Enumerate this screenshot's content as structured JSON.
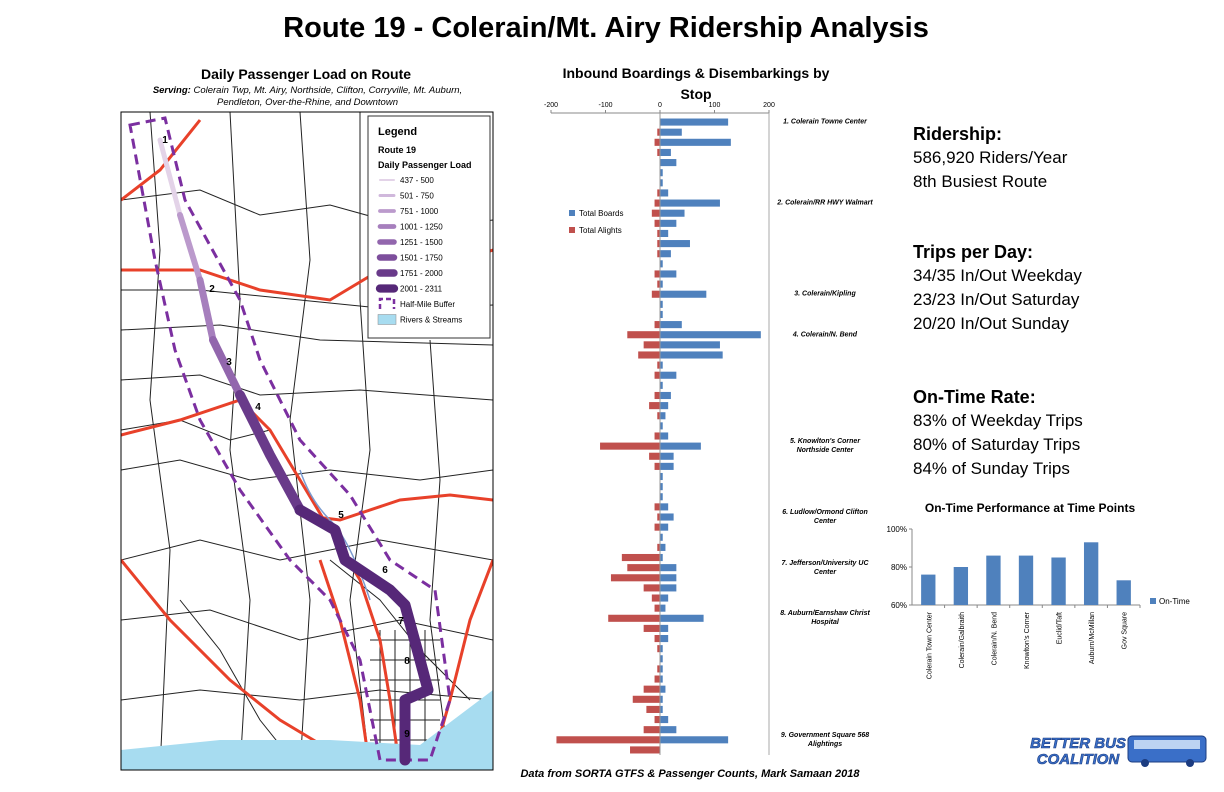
{
  "title": "Route 19 - Colerain/Mt. Airy Ridership Analysis",
  "map": {
    "title": "Daily Passenger Load on Route",
    "serving_label": "Serving:",
    "serving": "Colerain Twp, Mt. Airy, Northside, Clifton, Corryville, Mt. Auburn, Pendleton, Over-the-Rhine, and Downtown",
    "legend_title": "Legend",
    "route_label": "Route 19",
    "load_label": "Daily Passenger Load",
    "legend": [
      {
        "label": "437 - 500",
        "color": "#e3d3e8",
        "symbol": "line"
      },
      {
        "label": "501 - 750",
        "color": "#d0b8dc",
        "symbol": "line"
      },
      {
        "label": "751 - 1000",
        "color": "#bb9acc",
        "symbol": "line"
      },
      {
        "label": "1001 - 1250",
        "color": "#a67fbd",
        "symbol": "line"
      },
      {
        "label": "1251 - 1500",
        "color": "#9266ad",
        "symbol": "line"
      },
      {
        "label": "1501 - 1750",
        "color": "#7d4e9c",
        "symbol": "line"
      },
      {
        "label": "1751 - 2000",
        "color": "#693a8a",
        "symbol": "line"
      },
      {
        "label": "2001 - 2311",
        "color": "#562878",
        "symbol": "line"
      },
      {
        "label": "Half-Mile Buffer",
        "color": "#7b2fa0",
        "symbol": "dashed"
      },
      {
        "label": "Rivers & Streams",
        "color": "#a7dcf0",
        "symbol": "area"
      }
    ],
    "stop_labels": [
      "1",
      "2",
      "3",
      "4",
      "5",
      "6",
      "7",
      "8",
      "9"
    ]
  },
  "stats": [
    {
      "heading": "Ridership:",
      "lines": [
        "586,920 Riders/Year",
        "8th Busiest Route"
      ]
    },
    {
      "heading": "Trips per Day:",
      "lines": [
        "34/35 In/Out Weekday",
        "23/23 In/Out Saturday",
        "20/20 In/Out Sunday"
      ]
    },
    {
      "heading": "On-Time Rate:",
      "lines": [
        "83% of Weekday Trips",
        "80% of Saturday Trips",
        "84% of Sunday Trips"
      ]
    }
  ],
  "chart_data": [
    {
      "type": "bar",
      "orientation": "horizontal",
      "title": "Inbound Boardings & Disembarkings by Stop",
      "categories": [
        "1. Colerain Towne Center",
        null,
        null,
        null,
        null,
        null,
        null,
        null,
        "2. Colerain/RR HWY Walmart",
        null,
        null,
        null,
        null,
        null,
        null,
        null,
        null,
        "3. Colerain/Kipling",
        null,
        null,
        null,
        "4. Colerain/N. Bend",
        null,
        null,
        null,
        null,
        null,
        null,
        null,
        null,
        null,
        null,
        "5. Knowlton's Corner Northside Center",
        null,
        null,
        null,
        null,
        null,
        null,
        "6. Ludlow/Ormond Clifton Center",
        null,
        null,
        null,
        null,
        "7. Jefferson/University UC Center",
        null,
        null,
        null,
        null,
        "8. Auburn/Earnshaw Christ Hospital",
        null,
        null,
        null,
        null,
        null,
        null,
        null,
        null,
        null,
        null,
        null,
        "9. Government Square 568 Alightings",
        null
      ],
      "series": [
        {
          "name": "Total Boards",
          "color": "#4f81bd",
          "values": [
            125,
            40,
            130,
            20,
            30,
            5,
            5,
            15,
            110,
            45,
            30,
            15,
            55,
            20,
            5,
            30,
            5,
            85,
            5,
            5,
            40,
            185,
            110,
            115,
            5,
            30,
            5,
            20,
            15,
            10,
            5,
            15,
            75,
            25,
            25,
            5,
            5,
            5,
            15,
            25,
            15,
            5,
            10,
            5,
            30,
            30,
            30,
            15,
            10,
            80,
            15,
            15,
            5,
            5,
            5,
            5,
            10,
            5,
            5,
            15,
            30,
            125,
            0
          ]
        },
        {
          "name": "Total Alights",
          "color": "#c0504d",
          "values": [
            0,
            -5,
            -10,
            -5,
            0,
            0,
            0,
            -5,
            -10,
            -15,
            -10,
            -5,
            -5,
            -5,
            0,
            -10,
            -5,
            -15,
            0,
            0,
            -10,
            -60,
            -30,
            -40,
            -5,
            -10,
            0,
            -10,
            -20,
            -5,
            0,
            -10,
            -110,
            -20,
            -10,
            0,
            0,
            0,
            -10,
            -5,
            -10,
            0,
            -5,
            -70,
            -60,
            -90,
            -30,
            -15,
            -10,
            -95,
            -30,
            -10,
            -5,
            0,
            -5,
            -10,
            -30,
            -50,
            -25,
            -10,
            -30,
            -190,
            -55
          ]
        }
      ],
      "xlim": [
        -200,
        200
      ],
      "xticks": [
        -200,
        -100,
        0,
        100,
        200
      ],
      "legend": "upper left"
    },
    {
      "type": "bar",
      "orientation": "vertical",
      "title": "On-Time Performance at Time Points",
      "categories": [
        "Colerain Town Center",
        "Colerain/Galbraith",
        "Colerain/N. Bend",
        "Knowlton's Corner",
        "Euclid/Taft",
        "Auburn/McMillan",
        "Gov Square"
      ],
      "series": [
        {
          "name": "On-Time",
          "color": "#4f81bd",
          "values": [
            76,
            80,
            86,
            86,
            85,
            93,
            73
          ]
        }
      ],
      "ylim": [
        60,
        100
      ],
      "yticks": [
        {
          "value": 60,
          "label": "60%"
        },
        {
          "value": 80,
          "label": "80%"
        },
        {
          "value": 100,
          "label": "100%"
        }
      ],
      "legend": "right"
    }
  ],
  "source": "Data from SORTA GTFS & Passenger Counts, Mark Samaan 2018",
  "logo": [
    "BETTER BUS",
    "COALITION"
  ]
}
